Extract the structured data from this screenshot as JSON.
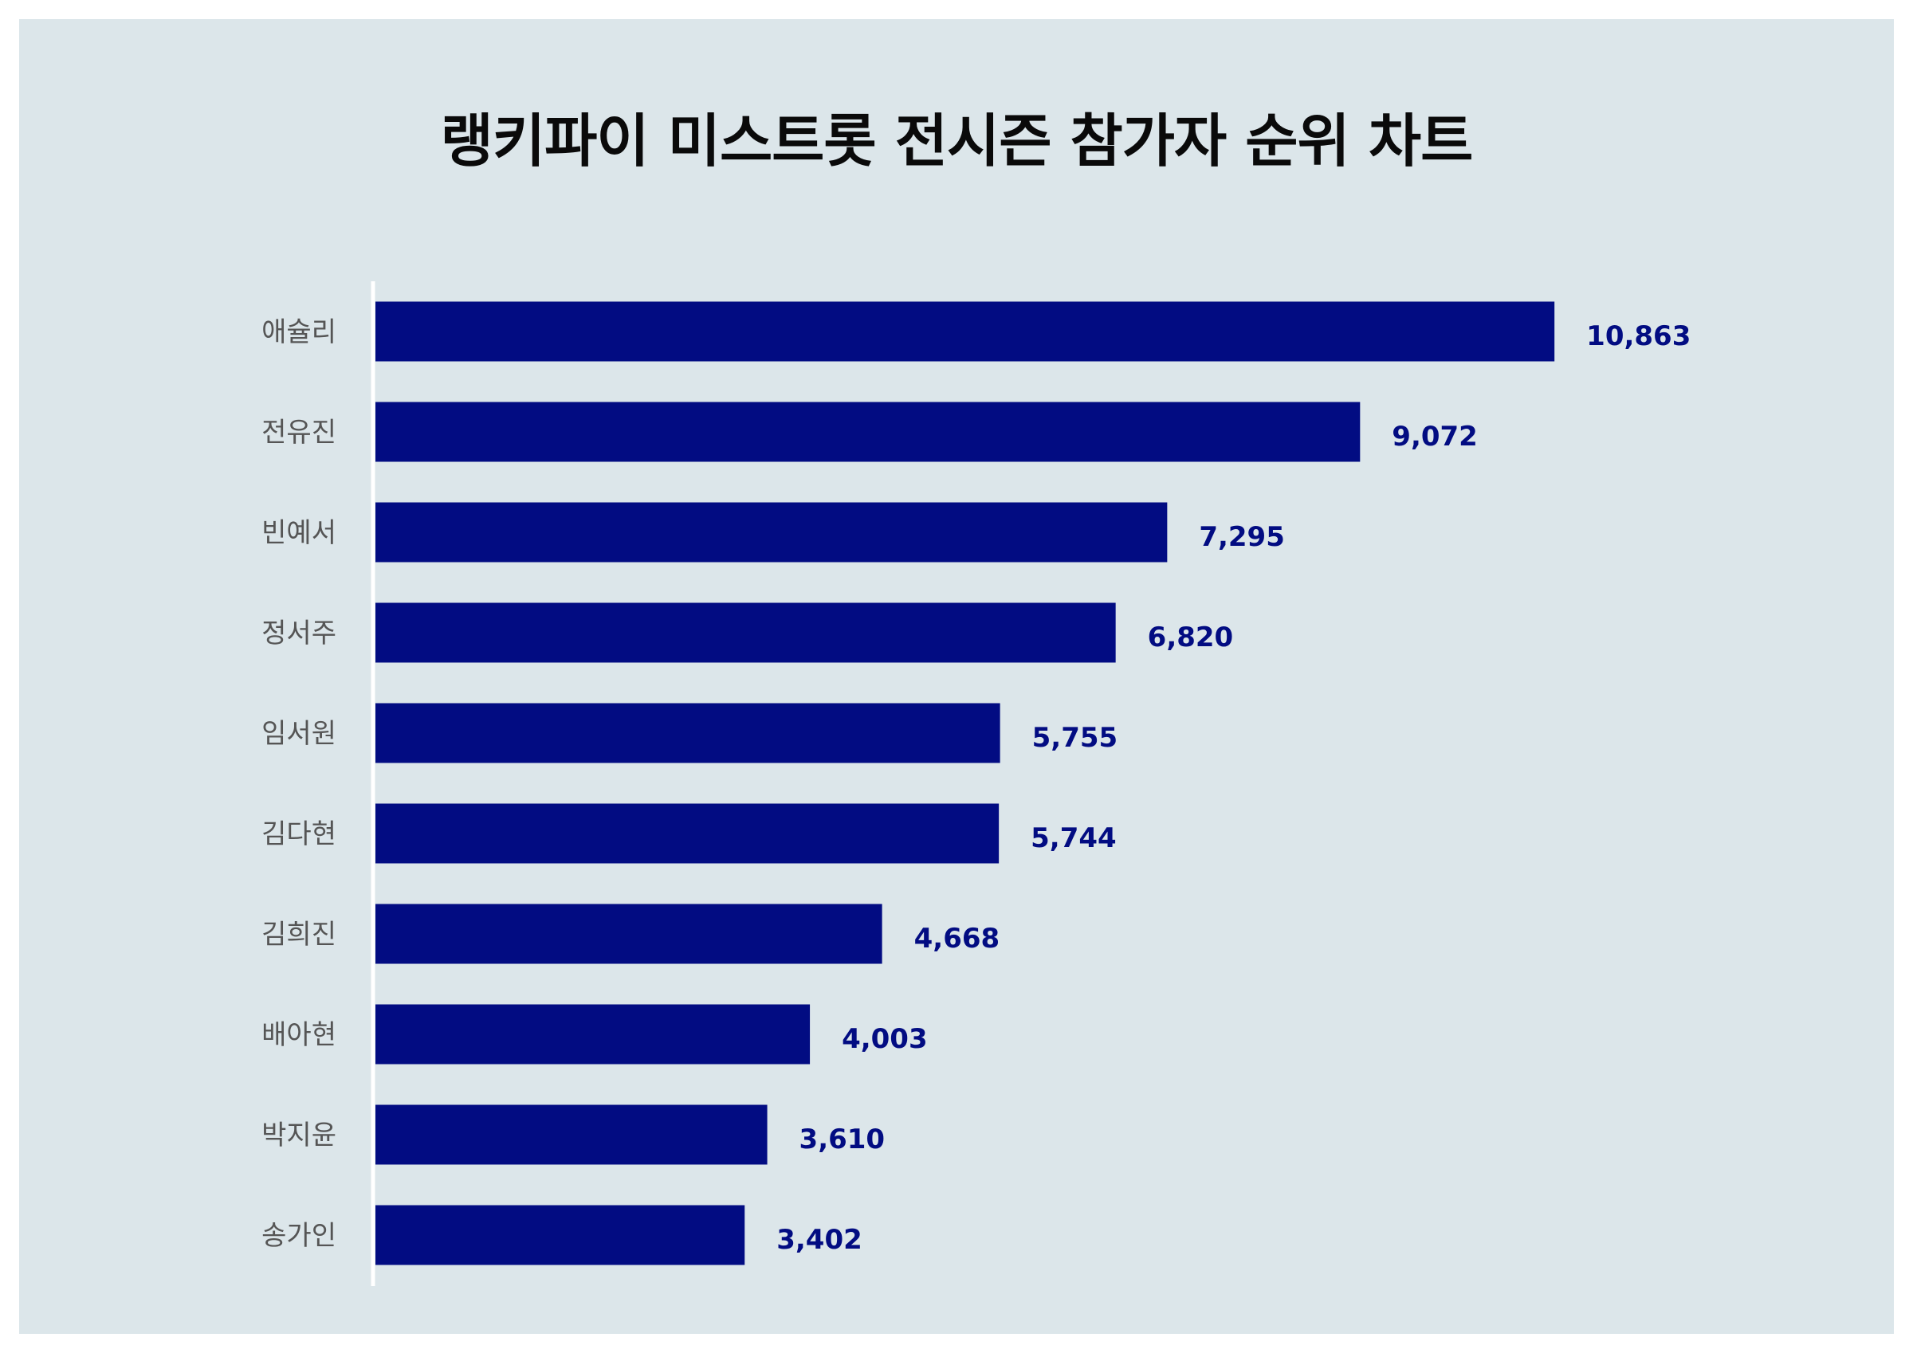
{
  "chart_data": {
    "type": "bar",
    "orientation": "horizontal",
    "title": "랭키파이 미스트롯 전시즌 참가자 순위 차트",
    "xlabel": "",
    "ylabel": "",
    "categories": [
      "애슐리",
      "전유진",
      "빈예서",
      "정서주",
      "임서원",
      "김다현",
      "김희진",
      "배아현",
      "박지윤",
      "송가인"
    ],
    "values": [
      10863,
      9072,
      7295,
      6820,
      5755,
      5744,
      4668,
      4003,
      3610,
      3402
    ],
    "value_labels": [
      "10,863",
      "9,072",
      "7,295",
      "6,820",
      "5,755",
      "5,744",
      "4,668",
      "4,003",
      "3,610",
      "3,402"
    ],
    "xlim": [
      0,
      12000
    ],
    "grid": false,
    "legend": "none",
    "colors": {
      "bar": "#020c82",
      "value_label": "#020c82",
      "background": "#dce6ea",
      "axis_line": "#ffffff"
    }
  }
}
